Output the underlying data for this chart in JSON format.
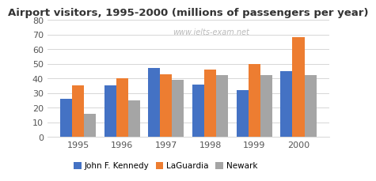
{
  "title": "Airport visitors, 1995-2000 (millions of passengers per year)",
  "watermark": "www.ielts-exam.net",
  "years": [
    "1995",
    "1996",
    "1997",
    "1998",
    "1999",
    "2000"
  ],
  "series": {
    "John F. Kennedy": [
      26,
      35,
      47,
      36,
      32,
      45
    ],
    "LaGuardia": [
      35,
      40,
      43,
      46,
      50,
      68
    ],
    "Newark": [
      16,
      25,
      39,
      42,
      42,
      42
    ]
  },
  "colors": {
    "John F. Kennedy": "#4472C4",
    "LaGuardia": "#ED7D31",
    "Newark": "#A5A5A5"
  },
  "ylim": [
    0,
    80
  ],
  "yticks": [
    0,
    10,
    20,
    30,
    40,
    50,
    60,
    70,
    80
  ],
  "legend_labels": [
    "John F. Kennedy",
    "LaGuardia",
    "Newark"
  ],
  "background_color": "#ffffff",
  "bar_width": 0.27,
  "title_fontsize": 9.5,
  "watermark_fontsize": 7,
  "legend_fontsize": 7.5,
  "tick_fontsize": 8
}
